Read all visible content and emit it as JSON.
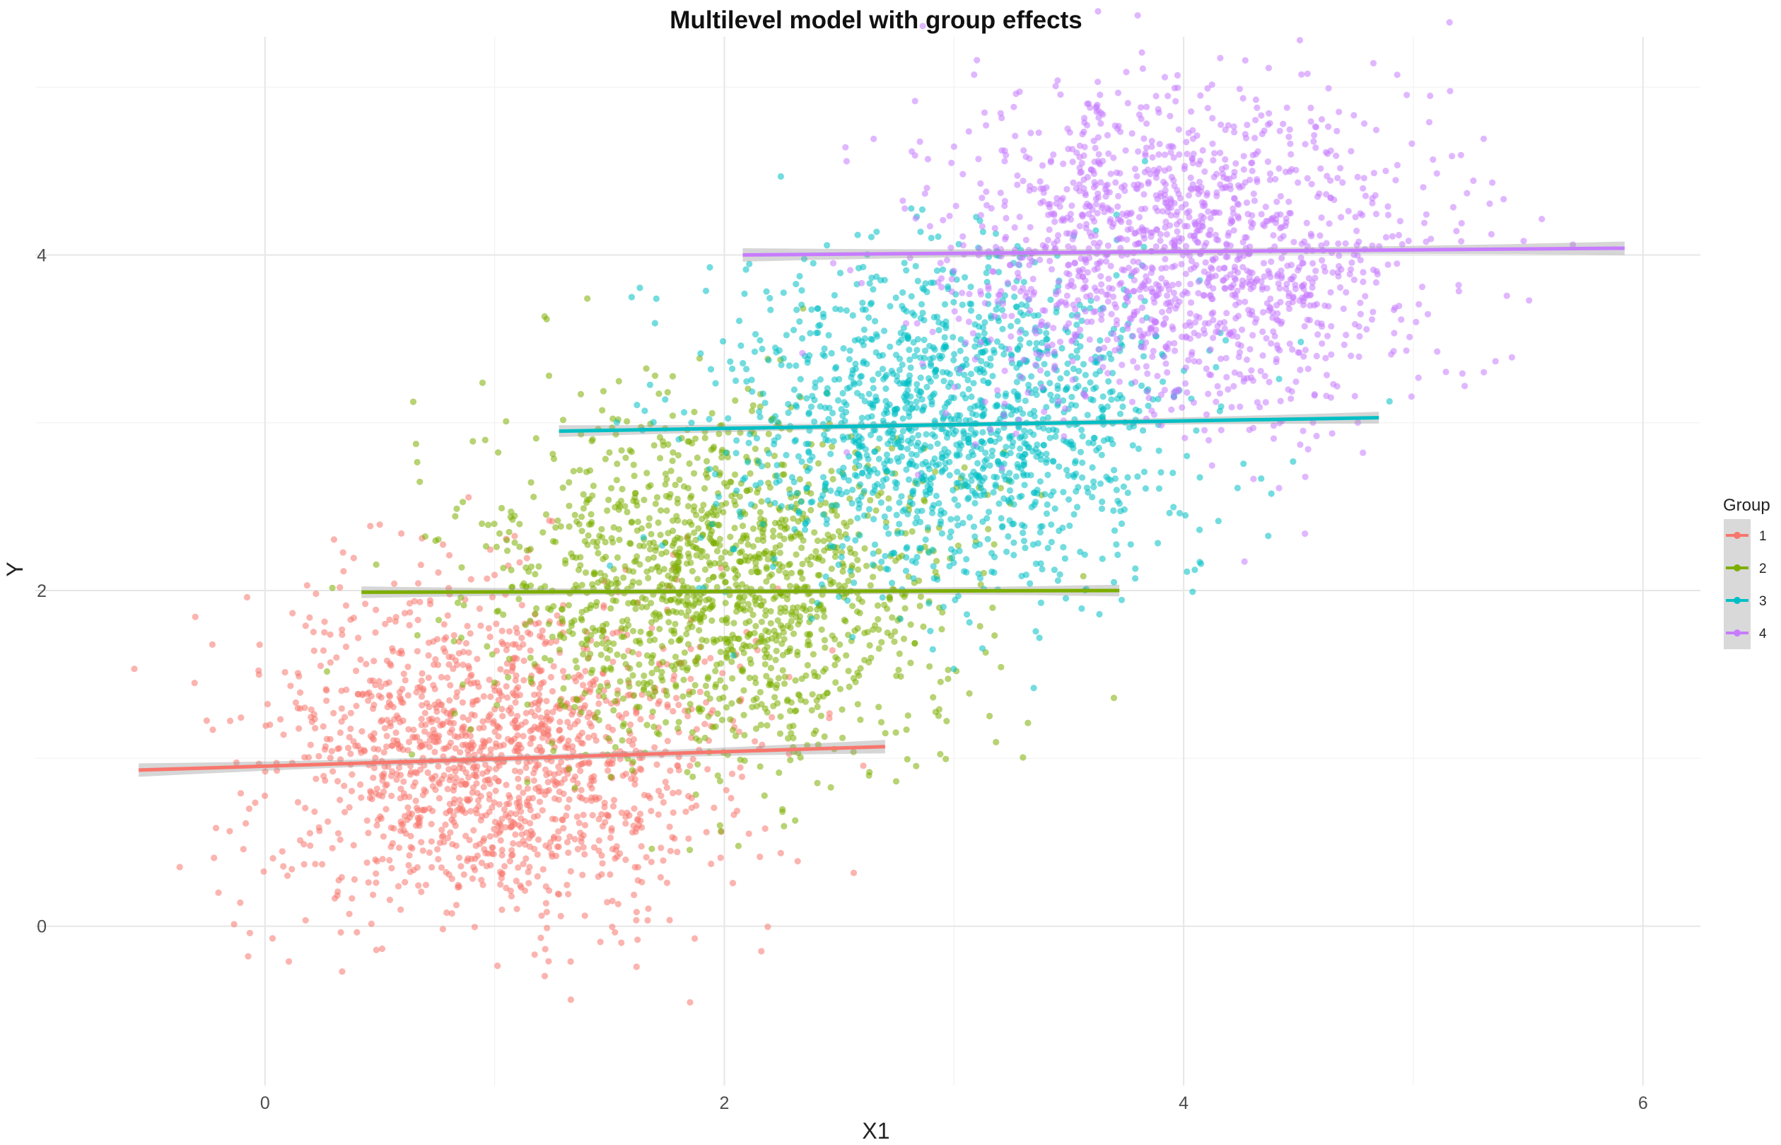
{
  "chart_data": {
    "type": "scatter",
    "title": "Multilevel model with group effects",
    "xlabel": "X1",
    "ylabel": "Y",
    "xlim": [
      -1.0,
      6.25
    ],
    "ylim": [
      -0.95,
      5.3
    ],
    "x_ticks": [
      0,
      2,
      4,
      6
    ],
    "y_ticks": [
      0,
      2,
      4
    ],
    "x_tick_labels": [
      "0",
      "2",
      "4",
      "6"
    ],
    "y_tick_labels": [
      "0",
      "2",
      "4"
    ],
    "grid": true,
    "legend": {
      "title": "Group",
      "position": "right"
    },
    "series": [
      {
        "name": "1",
        "color": "#F8766D",
        "x_mean": 1.0,
        "x_sd": 0.5,
        "y_mean": 1.0,
        "y_sd": 0.5,
        "n": 1500,
        "fit": {
          "x": [
            -0.55,
            2.7
          ],
          "y": [
            0.93,
            1.07
          ],
          "se": 0.04
        }
      },
      {
        "name": "2",
        "color": "#7CAE00",
        "x_mean": 2.0,
        "x_sd": 0.5,
        "y_mean": 2.0,
        "y_sd": 0.5,
        "n": 1500,
        "fit": {
          "x": [
            0.42,
            3.72
          ],
          "y": [
            1.99,
            2.0
          ],
          "se": 0.035
        }
      },
      {
        "name": "3",
        "color": "#00BFC4",
        "x_mean": 3.0,
        "x_sd": 0.5,
        "y_mean": 3.0,
        "y_sd": 0.5,
        "n": 1500,
        "fit": {
          "x": [
            1.28,
            4.85
          ],
          "y": [
            2.95,
            3.03
          ],
          "se": 0.035
        }
      },
      {
        "name": "4",
        "color": "#C77CFF",
        "x_mean": 4.0,
        "x_sd": 0.5,
        "y_mean": 4.0,
        "y_sd": 0.5,
        "n": 1500,
        "fit": {
          "x": [
            2.08,
            5.92
          ],
          "y": [
            4.0,
            4.04
          ],
          "se": 0.04
        }
      }
    ]
  }
}
